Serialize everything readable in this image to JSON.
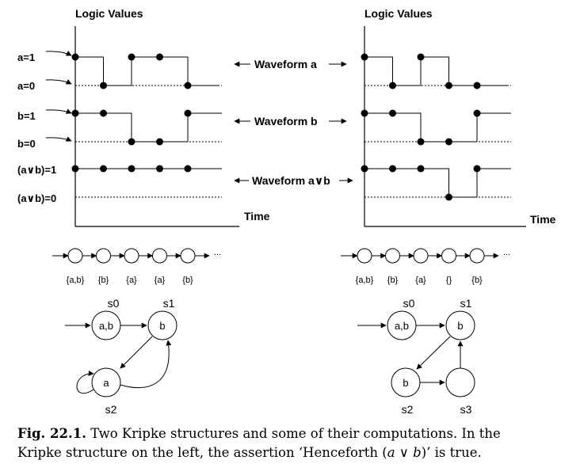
{
  "left_panel": {
    "axis_title": "Logic Values",
    "time_label": "Time",
    "level_labels": {
      "a1": "a=1",
      "a0": "a=0",
      "b1": "b=1",
      "b0": "b=0",
      "avb1": "(a∨b)=1",
      "avb0": "(a∨b)=0"
    },
    "waveforms": {
      "a": [
        1,
        0,
        1,
        1,
        0
      ],
      "b": [
        1,
        1,
        0,
        0,
        1
      ],
      "avb": [
        1,
        1,
        1,
        1,
        1
      ]
    },
    "sequence": {
      "labels": [
        "{a,b}",
        "{b}",
        "{a}",
        "{a}",
        "{b}"
      ],
      "ellipsis": "..."
    },
    "kripke": {
      "states": [
        {
          "name": "s0",
          "label": "a,b"
        },
        {
          "name": "s1",
          "label": "b"
        },
        {
          "name": "s2",
          "label": "a"
        }
      ]
    }
  },
  "middle_labels": {
    "waveform_a": "Waveform a",
    "waveform_b": "Waveform b",
    "waveform_avb": "Waveform a∨b"
  },
  "right_panel": {
    "axis_title": "Logic Values",
    "time_label": "Time",
    "waveforms": {
      "a": [
        1,
        0,
        1,
        0,
        0
      ],
      "b": [
        1,
        1,
        0,
        0,
        1
      ],
      "avb": [
        1,
        1,
        1,
        0,
        1
      ]
    },
    "sequence": {
      "labels": [
        "{a,b}",
        "{b}",
        "{a}",
        "{}",
        "{b}"
      ],
      "ellipsis": "..."
    },
    "kripke": {
      "states": [
        {
          "name": "s0",
          "label": "a,b"
        },
        {
          "name": "s1",
          "label": "b"
        },
        {
          "name": "s2",
          "label": "b"
        },
        {
          "name": "s3",
          "label": ""
        }
      ]
    }
  },
  "caption": {
    "label": "Fig. 22.1.",
    "text_1": " Two Kripke structures and some of their computations. In the Kripke structure on the left, the assertion ‘Henceforth (",
    "math": "a ∨ b",
    "text_2": ")’ is true."
  }
}
